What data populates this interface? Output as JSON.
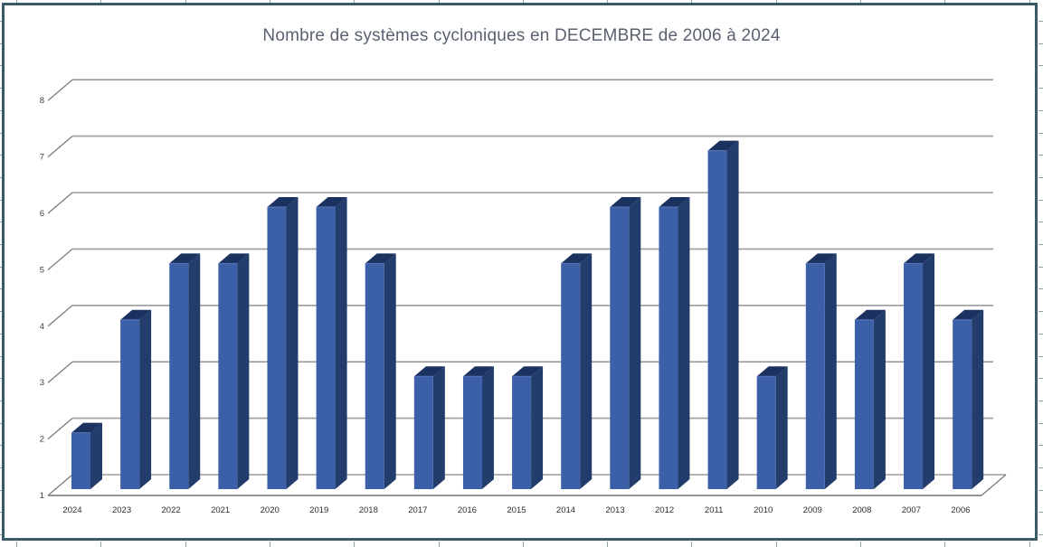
{
  "window": {
    "background": "#ffffff",
    "frame_border_color": "#3b5a66",
    "worksheet_tick_color": "#8fa3a8"
  },
  "chart_data": {
    "type": "bar",
    "style": "3d-column",
    "title": "Nombre de systèmes cycloniques en DECEMBRE de 2006 à 2024",
    "categories": [
      "2024",
      "2023",
      "2022",
      "2021",
      "2020",
      "2019",
      "2018",
      "2017",
      "2016",
      "2015",
      "2014",
      "2013",
      "2012",
      "2011",
      "2010",
      "2009",
      "2008",
      "2007",
      "2006"
    ],
    "values": [
      2,
      4,
      5,
      5,
      6,
      6,
      5,
      3,
      3,
      3,
      5,
      6,
      6,
      7,
      3,
      5,
      4,
      5,
      4
    ],
    "xlabel": "",
    "ylabel": "",
    "ylim": [
      1,
      8
    ],
    "yticks": [
      1,
      2,
      3,
      4,
      5,
      6,
      7,
      8
    ],
    "grid": true,
    "legend": "none",
    "colors": {
      "bar_front": "#3c60a8",
      "bar_side": "#223c6b",
      "bar_top": "#1b3160",
      "bar_edge_highlight": "#5a77b8",
      "gridline": "#9c9c9c",
      "grid_diagonal": "#7d7d7d",
      "axis_line": "#707070",
      "y_tick_label": "#3d3d3d",
      "x_tick_label": "#2e2e2e",
      "title": "#5a6270"
    }
  }
}
